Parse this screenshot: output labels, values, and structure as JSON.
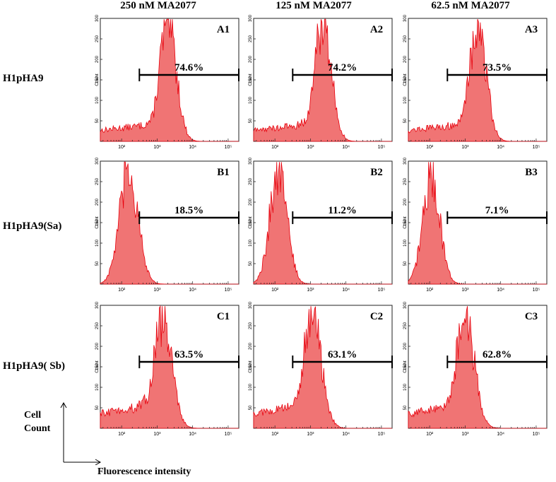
{
  "chart_data": {
    "type": "histogram-grid",
    "column_headers": [
      "250 nM MA2077",
      "125 nM MA2077",
      "62.5 nM MA2077"
    ],
    "row_labels": [
      "H1pHA9",
      "H1pHA9(Sa)",
      "H1pHA9( Sb)"
    ],
    "y_axis_label": "Count",
    "y_ticks": [
      "0",
      "50",
      "100",
      "150",
      "200",
      "250",
      "300"
    ],
    "ylim": [
      0,
      300
    ],
    "x_scale": "log10",
    "xlim_log10": [
      1.4,
      5.3
    ],
    "x_ticks": [
      {
        "label": "10²",
        "log10": 2
      },
      {
        "label": "10³",
        "log10": 3
      },
      {
        "label": "10⁴",
        "log10": 4
      },
      {
        "label": "10⁵",
        "log10": 5
      }
    ],
    "fill_color": "#f07474",
    "line_color": "#e8000c",
    "gate_color": "#000000",
    "panels": [
      {
        "id": "A1",
        "row": 0,
        "col": 0,
        "percent": "74.6%",
        "gate_log10": [
          2.5,
          5.3
        ],
        "gate_level": 162,
        "peak_log10": 3.3,
        "peak_count": 290,
        "spread": 0.24,
        "low_level": 45
      },
      {
        "id": "A2",
        "row": 0,
        "col": 1,
        "percent": "74.2%",
        "gate_log10": [
          2.5,
          5.3
        ],
        "gate_level": 162,
        "peak_log10": 3.35,
        "peak_count": 292,
        "spread": 0.24,
        "low_level": 45
      },
      {
        "id": "A3",
        "row": 0,
        "col": 2,
        "percent": "73.5%",
        "gate_log10": [
          2.5,
          5.3
        ],
        "gate_level": 162,
        "peak_log10": 3.35,
        "peak_count": 288,
        "spread": 0.24,
        "low_level": 45
      },
      {
        "id": "B1",
        "row": 1,
        "col": 0,
        "percent": "18.5%",
        "gate_log10": [
          2.5,
          5.3
        ],
        "gate_level": 162,
        "peak_log10": 2.2,
        "peak_count": 270,
        "spread": 0.26,
        "low_level": 0
      },
      {
        "id": "B2",
        "row": 1,
        "col": 1,
        "percent": "11.2%",
        "gate_log10": [
          2.5,
          5.3
        ],
        "gate_level": 162,
        "peak_log10": 2.1,
        "peak_count": 280,
        "spread": 0.24,
        "low_level": 0
      },
      {
        "id": "B3",
        "row": 1,
        "col": 2,
        "percent": "7.1%",
        "gate_log10": [
          2.5,
          5.3
        ],
        "gate_level": 162,
        "peak_log10": 2.05,
        "peak_count": 262,
        "spread": 0.24,
        "low_level": 0
      },
      {
        "id": "C1",
        "row": 2,
        "col": 0,
        "percent": "63.5%",
        "gate_log10": [
          2.5,
          5.3
        ],
        "gate_level": 162,
        "peak_log10": 3.15,
        "peak_count": 265,
        "spread": 0.26,
        "low_level": 60
      },
      {
        "id": "C2",
        "row": 2,
        "col": 1,
        "percent": "63.1%",
        "gate_log10": [
          2.5,
          5.3
        ],
        "gate_level": 162,
        "peak_log10": 3.05,
        "peak_count": 270,
        "spread": 0.26,
        "low_level": 60
      },
      {
        "id": "C3",
        "row": 2,
        "col": 2,
        "percent": "62.8%",
        "gate_log10": [
          2.5,
          5.3
        ],
        "gate_level": 162,
        "peak_log10": 3.0,
        "peak_count": 270,
        "spread": 0.26,
        "low_level": 60
      }
    ]
  },
  "axis_notes": {
    "y_axis_title_line1": "Cell",
    "y_axis_title_line2": "Count",
    "x_axis_title": "Fluorescence intensity"
  }
}
